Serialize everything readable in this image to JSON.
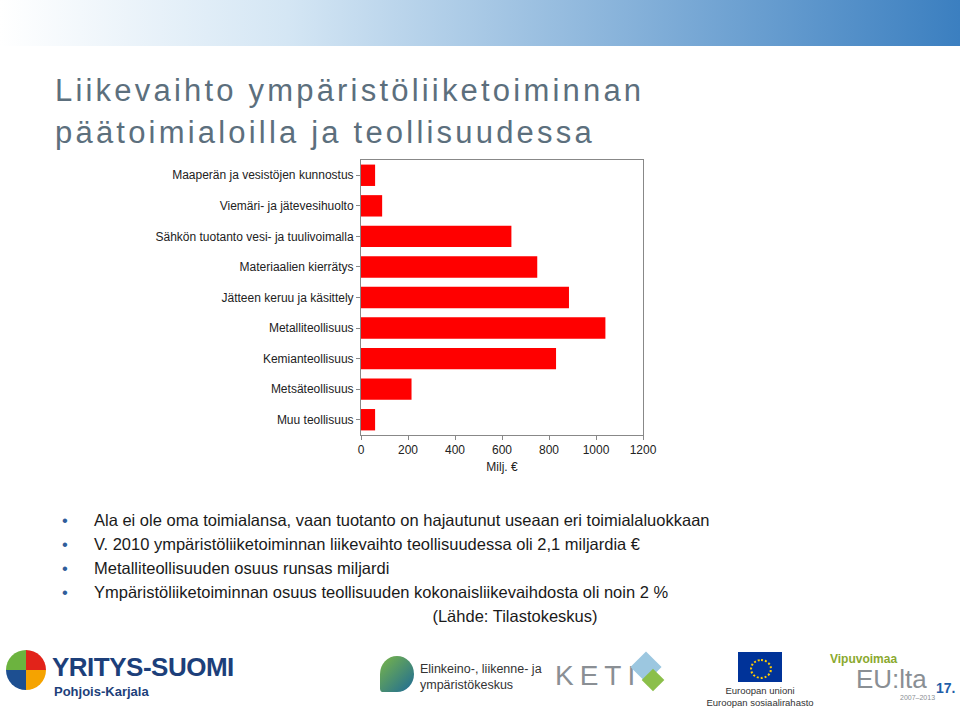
{
  "chart_data": {
    "type": "bar",
    "orientation": "horizontal",
    "categories": [
      "Maaperän ja vesistöjen kunnostus",
      "Viemäri- ja jätevesihuolto",
      "Sähkön tuotanto vesi- ja tuulivoimalla",
      "Materiaalien kierrätys",
      "Jätteen keruu ja käsittely",
      "Metalliteollisuus",
      "Kemianteollisuus",
      "Metsäteollisuus",
      "Muu teollisuus"
    ],
    "values": [
      60,
      90,
      640,
      750,
      885,
      1040,
      830,
      215,
      60
    ],
    "color": "#ff0000",
    "xlim": [
      0,
      1200
    ],
    "xticks": [
      0,
      200,
      400,
      600,
      800,
      1000,
      1200
    ],
    "x_label": "Milj. €",
    "grid": false
  },
  "slide": {
    "title": [
      "Liikevaihto ympäristöliiketoiminnan",
      "päätoimialoilla ja teollisuudessa"
    ],
    "bullets": [
      "Ala ei ole oma toimialansa, vaan tuotanto on hajautunut useaan eri toimialaluokkaan",
      "V. 2010 ympäristöliiketoiminnan liikevaihto teollisuudessa oli 2,1 miljardia €",
      "Metalliteollisuuden osuus runsas miljardi",
      "Ympäristöliiketoiminnan osuus teollisuuden kokonaisliikevaihdosta oli noin 2 %"
    ],
    "source": "(Lähde: Tilastokeskus)",
    "footer": {
      "yritys": "YRITYS-SUOMI",
      "region": "Pohjois-Karjala",
      "ely": [
        "Elinkeino-, liikenne- ja",
        "ympäristökeskus"
      ],
      "keti": "KETI",
      "eu": [
        "Euroopan unioni",
        "Euroopan sosiaalirahasto"
      ],
      "vipu": [
        "Vipuvoimaa",
        "EU:lta",
        "2007–2013"
      ]
    },
    "page": "17."
  }
}
